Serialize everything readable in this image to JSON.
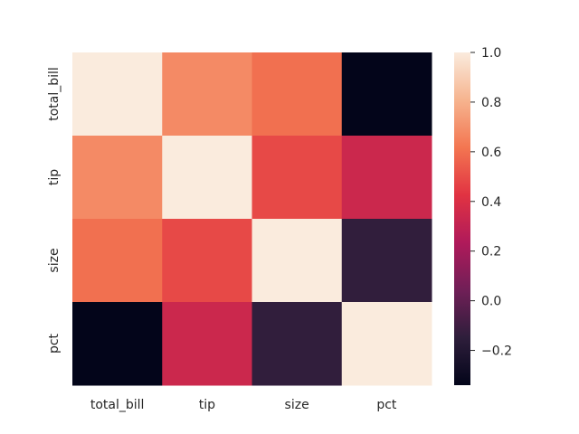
{
  "chart_data": {
    "type": "heatmap",
    "title": "",
    "xlabel": "",
    "ylabel": "",
    "x_categories": [
      "total_bill",
      "tip",
      "size",
      "pct"
    ],
    "y_categories": [
      "total_bill",
      "tip",
      "size",
      "pct"
    ],
    "values": [
      [
        1.0,
        0.68,
        0.6,
        -0.34
      ],
      [
        0.68,
        1.0,
        0.49,
        0.34
      ],
      [
        0.6,
        0.49,
        1.0,
        -0.14
      ],
      [
        -0.34,
        0.34,
        -0.14,
        1.0
      ]
    ],
    "colorbar": {
      "min": -0.34,
      "max": 1.0,
      "ticks": [
        -0.2,
        0.0,
        0.2,
        0.4,
        0.6,
        0.8,
        1.0
      ],
      "tick_labels": [
        "−0.2",
        "0.0",
        "0.2",
        "0.4",
        "0.6",
        "0.8",
        "1.0"
      ],
      "colormap": "rocket",
      "colormap_stops": [
        "#03051a",
        "#2e1e3b",
        "#701f57",
        "#b01a5a",
        "#e13342",
        "#f37651",
        "#f6b48f",
        "#faebdd"
      ]
    },
    "grid": false
  }
}
